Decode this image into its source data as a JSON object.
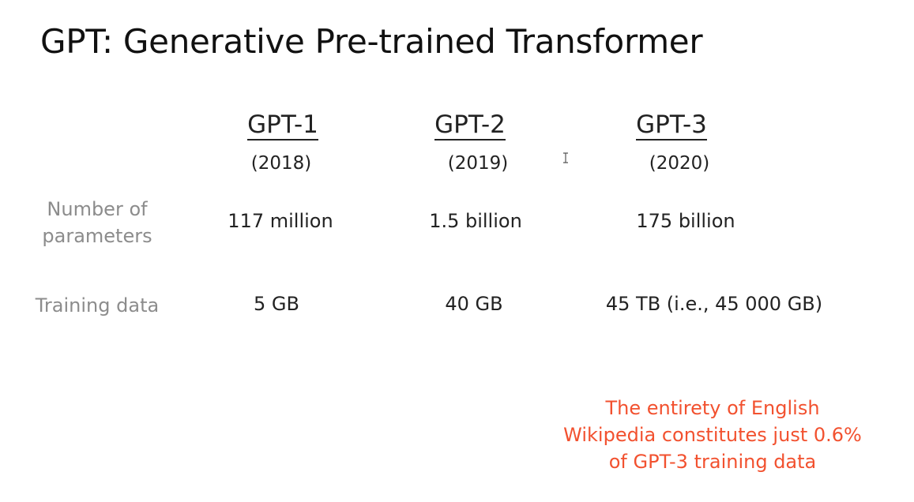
{
  "slide": {
    "title": "GPT: Generative Pre-trained Transformer",
    "columns": [
      {
        "name": "GPT-1",
        "year": "(2018)"
      },
      {
        "name": "GPT-2",
        "year": "(2019)"
      },
      {
        "name": "GPT-3",
        "year": "(2020)"
      }
    ],
    "rows": [
      {
        "label": "Number of parameters",
        "values": [
          "117 million",
          "1.5 billion",
          "175 billion"
        ]
      },
      {
        "label": "Training data",
        "values": [
          "5 GB",
          "40 GB",
          "45 TB (i.e., 45 000 GB)"
        ]
      }
    ],
    "note": "The entirety of English Wikipedia constitutes just 0.6% of GPT-3 training data",
    "note_color": "#f2512f"
  }
}
